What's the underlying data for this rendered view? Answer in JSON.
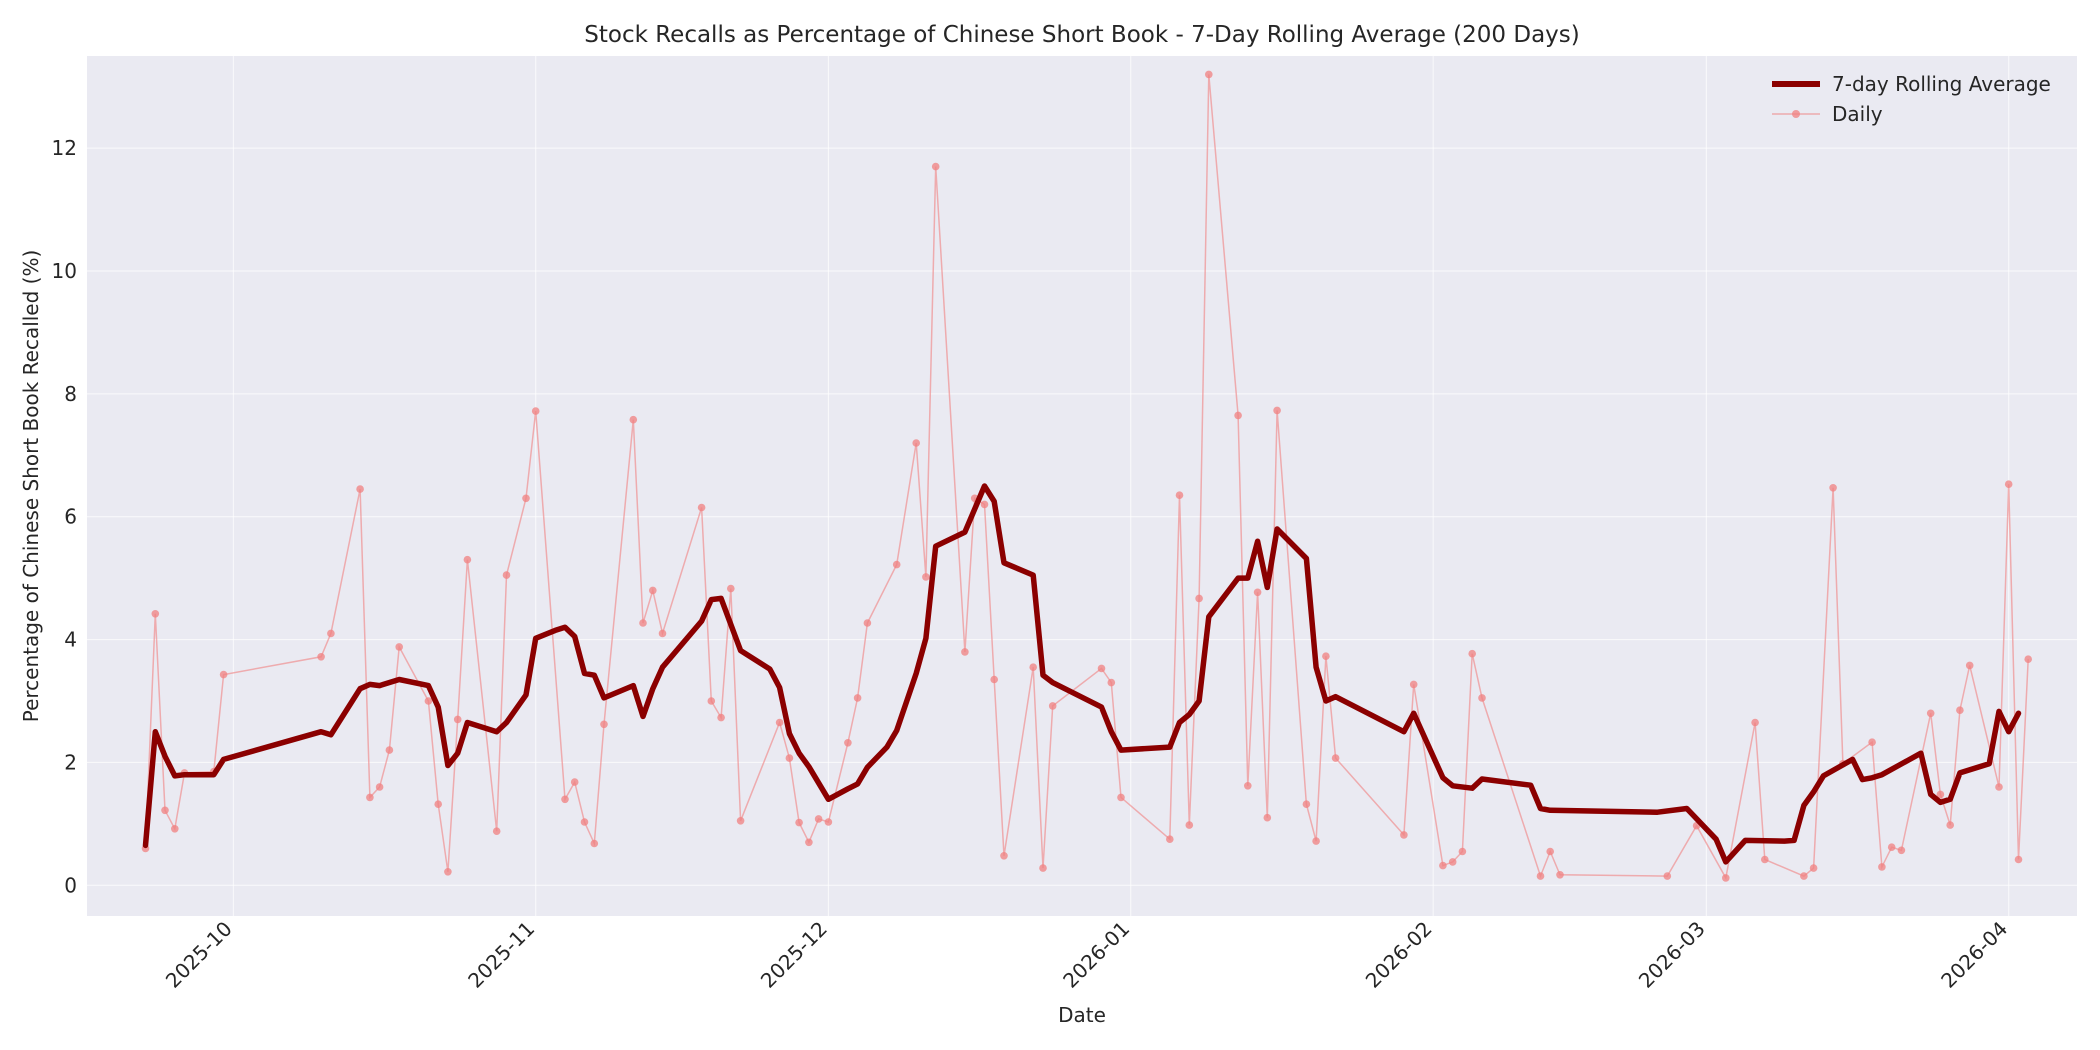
{
  "chart_data": {
    "type": "line",
    "title": "Stock Recalls as Percentage of Chinese Short Book - 7-Day Rolling Average (200 Days)",
    "xlabel": "Date",
    "ylabel": "Percentage of Chinese Short Book Recalled (%)",
    "ylim": [
      -0.5,
      13.5
    ],
    "xlim": [
      "2025-09-16",
      "2026-04-08"
    ],
    "yticks": [
      0,
      2,
      4,
      6,
      8,
      10,
      12
    ],
    "xticks": [
      "2025-10",
      "2025-11",
      "2025-12",
      "2026-01",
      "2026-02",
      "2026-03",
      "2026-04"
    ],
    "xtick_dates": [
      "2025-10-01",
      "2025-11-01",
      "2025-12-01",
      "2026-01-01",
      "2026-02-01",
      "2026-03-01",
      "2026-04-01"
    ],
    "grid": true,
    "legend_position": "top-right",
    "colors": {
      "rolling": "#8b0000",
      "daily": "#f08080",
      "plot_bg": "#eaeaf2"
    },
    "series": [
      {
        "name": "7-day Rolling Average",
        "style": "thick-line",
        "points": [
          [
            "2025-09-22",
            0.65
          ],
          [
            "2025-09-23",
            2.5
          ],
          [
            "2025-09-24",
            2.1
          ],
          [
            "2025-09-25",
            1.78
          ],
          [
            "2025-09-26",
            1.8
          ],
          [
            "2025-09-29",
            1.8
          ],
          [
            "2025-09-30",
            2.05
          ],
          [
            "2025-10-10",
            2.5
          ],
          [
            "2025-10-11",
            2.45
          ],
          [
            "2025-10-14",
            3.2
          ],
          [
            "2025-10-15",
            3.27
          ],
          [
            "2025-10-16",
            3.25
          ],
          [
            "2025-10-18",
            3.35
          ],
          [
            "2025-10-21",
            3.25
          ],
          [
            "2025-10-22",
            2.9
          ],
          [
            "2025-10-23",
            1.95
          ],
          [
            "2025-10-24",
            2.15
          ],
          [
            "2025-10-25",
            2.65
          ],
          [
            "2025-10-28",
            2.5
          ],
          [
            "2025-10-29",
            2.65
          ],
          [
            "2025-10-31",
            3.1
          ],
          [
            "2025-11-01",
            4.02
          ],
          [
            "2025-11-03",
            4.15
          ],
          [
            "2025-11-04",
            4.2
          ],
          [
            "2025-11-05",
            4.05
          ],
          [
            "2025-11-06",
            3.45
          ],
          [
            "2025-11-07",
            3.42
          ],
          [
            "2025-11-08",
            3.05
          ],
          [
            "2025-11-11",
            3.25
          ],
          [
            "2025-11-12",
            2.75
          ],
          [
            "2025-11-13",
            3.2
          ],
          [
            "2025-11-14",
            3.55
          ],
          [
            "2025-11-18",
            4.3
          ],
          [
            "2025-11-19",
            4.65
          ],
          [
            "2025-11-20",
            4.67
          ],
          [
            "2025-11-22",
            3.82
          ],
          [
            "2025-11-25",
            3.52
          ],
          [
            "2025-11-26",
            3.22
          ],
          [
            "2025-11-27",
            2.47
          ],
          [
            "2025-11-28",
            2.15
          ],
          [
            "2025-11-29",
            1.93
          ],
          [
            "2025-12-01",
            1.4
          ],
          [
            "2025-12-03",
            1.57
          ],
          [
            "2025-12-04",
            1.65
          ],
          [
            "2025-12-05",
            1.92
          ],
          [
            "2025-12-07",
            2.25
          ],
          [
            "2025-12-08",
            2.52
          ],
          [
            "2025-12-10",
            3.45
          ],
          [
            "2025-12-11",
            4.02
          ],
          [
            "2025-12-12",
            5.52
          ],
          [
            "2025-12-15",
            5.75
          ],
          [
            "2025-12-17",
            6.5
          ],
          [
            "2025-12-18",
            6.25
          ],
          [
            "2025-12-19",
            5.25
          ],
          [
            "2025-12-22",
            5.05
          ],
          [
            "2025-12-23",
            3.42
          ],
          [
            "2025-12-24",
            3.3
          ],
          [
            "2025-12-29",
            2.9
          ],
          [
            "2025-12-30",
            2.5
          ],
          [
            "2025-12-31",
            2.2
          ],
          [
            "2026-01-05",
            2.25
          ],
          [
            "2026-01-06",
            2.65
          ],
          [
            "2026-01-07",
            2.78
          ],
          [
            "2026-01-08",
            3.0
          ],
          [
            "2026-01-09",
            4.37
          ],
          [
            "2026-01-12",
            5.0
          ],
          [
            "2026-01-13",
            5.0
          ],
          [
            "2026-01-14",
            5.6
          ],
          [
            "2026-01-15",
            4.85
          ],
          [
            "2026-01-16",
            5.8
          ],
          [
            "2026-01-19",
            5.32
          ],
          [
            "2026-01-20",
            3.55
          ],
          [
            "2026-01-21",
            3.0
          ],
          [
            "2026-01-22",
            3.07
          ],
          [
            "2026-01-29",
            2.5
          ],
          [
            "2026-01-30",
            2.8
          ],
          [
            "2026-02-02",
            1.75
          ],
          [
            "2026-02-03",
            1.62
          ],
          [
            "2026-02-05",
            1.58
          ],
          [
            "2026-02-06",
            1.73
          ],
          [
            "2026-02-11",
            1.63
          ],
          [
            "2026-02-12",
            1.25
          ],
          [
            "2026-02-13",
            1.22
          ],
          [
            "2026-02-24",
            1.19
          ],
          [
            "2026-02-27",
            1.25
          ],
          [
            "2026-03-02",
            0.75
          ],
          [
            "2026-03-03",
            0.38
          ],
          [
            "2026-03-05",
            0.73
          ],
          [
            "2026-03-09",
            0.72
          ],
          [
            "2026-03-10",
            0.73
          ],
          [
            "2026-03-11",
            1.3
          ],
          [
            "2026-03-12",
            1.52
          ],
          [
            "2026-03-13",
            1.78
          ],
          [
            "2026-03-16",
            2.05
          ],
          [
            "2026-03-17",
            1.72
          ],
          [
            "2026-03-18",
            1.75
          ],
          [
            "2026-03-19",
            1.8
          ],
          [
            "2026-03-23",
            2.15
          ],
          [
            "2026-03-24",
            1.48
          ],
          [
            "2026-03-25",
            1.35
          ],
          [
            "2026-03-26",
            1.4
          ],
          [
            "2026-03-27",
            1.83
          ],
          [
            "2026-03-30",
            1.98
          ],
          [
            "2026-03-31",
            2.83
          ],
          [
            "2026-04-01",
            2.5
          ],
          [
            "2026-04-02",
            2.8
          ]
        ]
      },
      {
        "name": "Daily",
        "style": "thin-line-markers",
        "points": [
          [
            "2025-09-22",
            0.6
          ],
          [
            "2025-09-23",
            4.42
          ],
          [
            "2025-09-24",
            1.22
          ],
          [
            "2025-09-25",
            0.92
          ],
          [
            "2025-09-26",
            1.83
          ],
          [
            "2025-09-29",
            1.85
          ],
          [
            "2025-09-30",
            3.43
          ],
          [
            "2025-10-10",
            3.72
          ],
          [
            "2025-10-11",
            4.1
          ],
          [
            "2025-10-14",
            6.45
          ],
          [
            "2025-10-15",
            1.43
          ],
          [
            "2025-10-16",
            1.6
          ],
          [
            "2025-10-17",
            2.2
          ],
          [
            "2025-10-18",
            3.88
          ],
          [
            "2025-10-21",
            3.0
          ],
          [
            "2025-10-22",
            1.32
          ],
          [
            "2025-10-23",
            0.22
          ],
          [
            "2025-10-24",
            2.7
          ],
          [
            "2025-10-25",
            5.3
          ],
          [
            "2025-10-28",
            0.88
          ],
          [
            "2025-10-29",
            5.05
          ],
          [
            "2025-10-31",
            6.3
          ],
          [
            "2025-11-01",
            7.72
          ],
          [
            "2025-11-04",
            1.4
          ],
          [
            "2025-11-05",
            1.68
          ],
          [
            "2025-11-06",
            1.03
          ],
          [
            "2025-11-07",
            0.68
          ],
          [
            "2025-11-08",
            2.62
          ],
          [
            "2025-11-11",
            7.58
          ],
          [
            "2025-11-12",
            4.27
          ],
          [
            "2025-11-13",
            4.8
          ],
          [
            "2025-11-14",
            4.1
          ],
          [
            "2025-11-18",
            6.15
          ],
          [
            "2025-11-19",
            3.0
          ],
          [
            "2025-11-20",
            2.73
          ],
          [
            "2025-11-21",
            4.83
          ],
          [
            "2025-11-22",
            1.05
          ],
          [
            "2025-11-26",
            2.65
          ],
          [
            "2025-11-27",
            2.07
          ],
          [
            "2025-11-28",
            1.02
          ],
          [
            "2025-11-29",
            0.7
          ],
          [
            "2025-11-30",
            1.08
          ],
          [
            "2025-12-01",
            1.03
          ],
          [
            "2025-12-03",
            2.32
          ],
          [
            "2025-12-04",
            3.05
          ],
          [
            "2025-12-05",
            4.27
          ],
          [
            "2025-12-08",
            5.22
          ],
          [
            "2025-12-10",
            7.2
          ],
          [
            "2025-12-11",
            5.02
          ],
          [
            "2025-12-12",
            11.7
          ],
          [
            "2025-12-15",
            3.8
          ],
          [
            "2025-12-16",
            6.3
          ],
          [
            "2025-12-17",
            6.2
          ],
          [
            "2025-12-18",
            3.35
          ],
          [
            "2025-12-19",
            0.48
          ],
          [
            "2025-12-22",
            3.55
          ],
          [
            "2025-12-23",
            0.28
          ],
          [
            "2025-12-24",
            2.92
          ],
          [
            "2025-12-29",
            3.53
          ],
          [
            "2025-12-30",
            3.3
          ],
          [
            "2025-12-31",
            1.43
          ],
          [
            "2026-01-05",
            0.75
          ],
          [
            "2026-01-06",
            6.35
          ],
          [
            "2026-01-07",
            0.98
          ],
          [
            "2026-01-08",
            4.67
          ],
          [
            "2026-01-09",
            13.2
          ],
          [
            "2026-01-12",
            7.65
          ],
          [
            "2026-01-13",
            1.62
          ],
          [
            "2026-01-14",
            4.77
          ],
          [
            "2026-01-15",
            1.1
          ],
          [
            "2026-01-16",
            7.73
          ],
          [
            "2026-01-19",
            1.32
          ],
          [
            "2026-01-20",
            0.72
          ],
          [
            "2026-01-21",
            3.73
          ],
          [
            "2026-01-22",
            2.07
          ],
          [
            "2026-01-29",
            0.82
          ],
          [
            "2026-01-30",
            3.27
          ],
          [
            "2026-02-02",
            0.32
          ],
          [
            "2026-02-03",
            0.38
          ],
          [
            "2026-02-04",
            0.55
          ],
          [
            "2026-02-05",
            3.77
          ],
          [
            "2026-02-06",
            3.05
          ],
          [
            "2026-02-12",
            0.15
          ],
          [
            "2026-02-13",
            0.55
          ],
          [
            "2026-02-14",
            0.17
          ],
          [
            "2026-02-25",
            0.15
          ],
          [
            "2026-02-28",
            0.97
          ],
          [
            "2026-03-03",
            0.12
          ],
          [
            "2026-03-06",
            2.65
          ],
          [
            "2026-03-07",
            0.42
          ],
          [
            "2026-03-11",
            0.15
          ],
          [
            "2026-03-12",
            0.28
          ],
          [
            "2026-03-14",
            6.47
          ],
          [
            "2026-03-15",
            1.98
          ],
          [
            "2026-03-18",
            2.33
          ],
          [
            "2026-03-19",
            0.3
          ],
          [
            "2026-03-20",
            0.62
          ],
          [
            "2026-03-21",
            0.57
          ],
          [
            "2026-03-24",
            2.8
          ],
          [
            "2026-03-25",
            1.48
          ],
          [
            "2026-03-26",
            0.98
          ],
          [
            "2026-03-27",
            2.85
          ],
          [
            "2026-03-28",
            3.58
          ],
          [
            "2026-03-31",
            1.6
          ],
          [
            "2026-04-01",
            6.53
          ],
          [
            "2026-04-02",
            0.42
          ],
          [
            "2026-04-03",
            3.68
          ]
        ]
      }
    ]
  }
}
